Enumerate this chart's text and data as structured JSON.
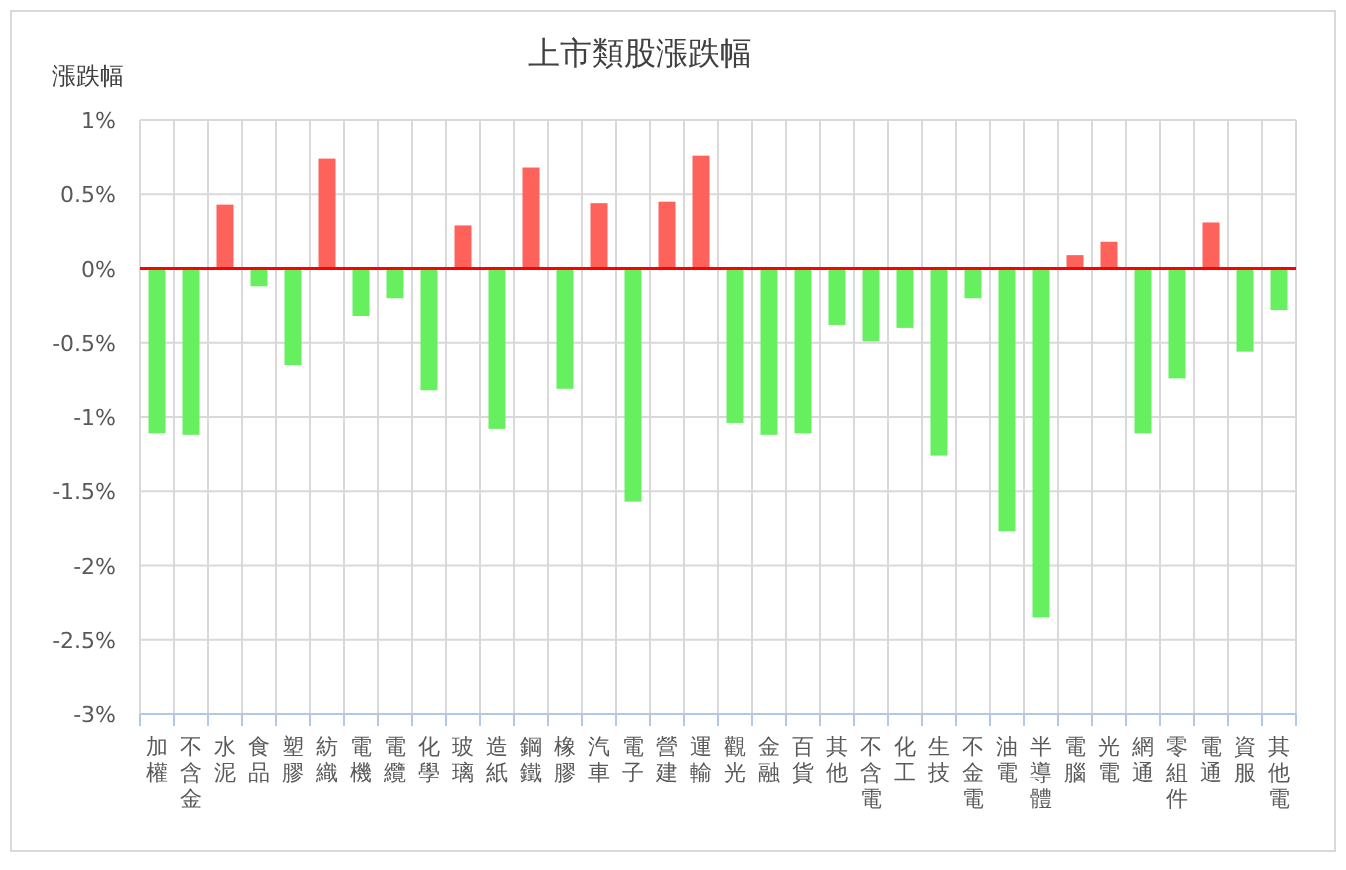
{
  "chart_data": {
    "type": "bar",
    "title": "上市類股漲跌幅",
    "ylabel": "漲跌幅",
    "categories": [
      "加權",
      "不含金",
      "水泥",
      "食品",
      "塑膠",
      "紡織",
      "電機",
      "電纜",
      "化學",
      "玻璃",
      "造紙",
      "鋼鐵",
      "橡膠",
      "汽車",
      "電子",
      "營建",
      "運輸",
      "觀光",
      "金融",
      "百貨",
      "其他",
      "不含電",
      "化工",
      "生技",
      "不金電",
      "油電",
      "半導體",
      "電腦",
      "光電",
      "網通",
      "零組件",
      "電通",
      "資服",
      "其他電"
    ],
    "values": [
      -1.11,
      -1.12,
      0.43,
      -0.12,
      -0.65,
      0.74,
      -0.32,
      -0.2,
      -0.82,
      0.29,
      -1.08,
      0.68,
      -0.81,
      0.44,
      -1.57,
      0.45,
      0.76,
      -1.04,
      -1.12,
      -1.11,
      -0.38,
      -0.49,
      -0.4,
      -1.26,
      -0.2,
      -1.77,
      -2.35,
      0.09,
      0.18,
      -1.11,
      -0.74,
      0.31,
      -0.56,
      -0.28
    ],
    "colors": [
      "#66f060",
      "#66f060",
      "#ff625a",
      "#66f060",
      "#66f060",
      "#ff625a",
      "#66f060",
      "#66f060",
      "#66f060",
      "#ff625a",
      "#66f060",
      "#ff625a",
      "#66f060",
      "#ff625a",
      "#66f060",
      "#ff625a",
      "#ff625a",
      "#66f060",
      "#66f060",
      "#66f060",
      "#66f060",
      "#66f060",
      "#66f060",
      "#66f060",
      "#66f060",
      "#66f060",
      "#66f060",
      "#ff625a",
      "#ff625a",
      "#66f060",
      "#66f060",
      "#ff625a",
      "#66f060",
      "#66f060"
    ],
    "ylim": [
      -3,
      1
    ],
    "yticks": [
      {
        "value": 1,
        "label": "1%"
      },
      {
        "value": 0.5,
        "label": "0.5%"
      },
      {
        "value": 0,
        "label": "0%"
      },
      {
        "value": -0.5,
        "label": "-0.5%"
      },
      {
        "value": -1,
        "label": "-1%"
      },
      {
        "value": -1.5,
        "label": "-1.5%"
      },
      {
        "value": -2,
        "label": "-2%"
      },
      {
        "value": -2.5,
        "label": "-2.5%"
      },
      {
        "value": -3,
        "label": "-3%"
      }
    ],
    "grid": true,
    "ref_lines": [
      {
        "axis": "y",
        "value": 0,
        "color": "#ff0000",
        "line_style": "solid"
      }
    ]
  }
}
